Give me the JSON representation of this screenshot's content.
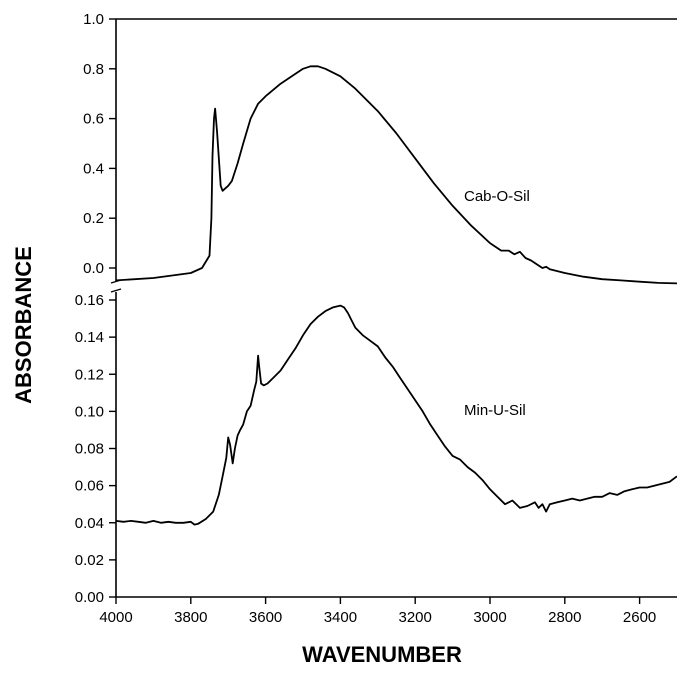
{
  "chart_data": [
    {
      "type": "line",
      "panel": "upper",
      "xlabel": "WAVENUMBER",
      "ylabel": "ABSORBANCE",
      "xlim": [
        4000,
        2500
      ],
      "x_reversed": true,
      "ylim": [
        -0.05,
        1.0
      ],
      "y_ticks": [
        "0.0",
        "0.2",
        "0.4",
        "0.6",
        "0.8",
        "1.0"
      ],
      "y_tick_values": [
        0.0,
        0.2,
        0.4,
        0.6,
        0.8,
        1.0
      ],
      "series": [
        {
          "name": "Cab-O-Sil",
          "x": [
            4000,
            3900,
            3800,
            3770,
            3750,
            3745,
            3742,
            3738,
            3735,
            3730,
            3720,
            3715,
            3700,
            3690,
            3675,
            3660,
            3640,
            3620,
            3600,
            3560,
            3520,
            3500,
            3480,
            3460,
            3440,
            3400,
            3360,
            3300,
            3250,
            3200,
            3150,
            3100,
            3050,
            3000,
            2970,
            2950,
            2935,
            2920,
            2905,
            2890,
            2870,
            2860,
            2850,
            2840,
            2800,
            2750,
            2700,
            2650,
            2600,
            2550,
            2500
          ],
          "y": [
            -0.05,
            -0.04,
            -0.02,
            0.0,
            0.05,
            0.2,
            0.45,
            0.6,
            0.64,
            0.55,
            0.33,
            0.31,
            0.33,
            0.35,
            0.42,
            0.5,
            0.6,
            0.66,
            0.69,
            0.74,
            0.78,
            0.8,
            0.81,
            0.81,
            0.8,
            0.77,
            0.72,
            0.63,
            0.54,
            0.44,
            0.34,
            0.25,
            0.17,
            0.1,
            0.07,
            0.07,
            0.055,
            0.065,
            0.04,
            0.03,
            0.01,
            0.0,
            0.005,
            -0.005,
            -0.02,
            -0.035,
            -0.045,
            -0.05,
            -0.055,
            -0.06,
            -0.062
          ]
        }
      ]
    },
    {
      "type": "line",
      "panel": "lower",
      "xlabel": "WAVENUMBER",
      "ylabel": "ABSORBANCE",
      "xlim": [
        4000,
        2500
      ],
      "x_reversed": true,
      "ylim": [
        0.0,
        0.16
      ],
      "y_ticks": [
        "0.00",
        "0.02",
        "0.04",
        "0.06",
        "0.08",
        "0.10",
        "0.12",
        "0.14",
        "0.16"
      ],
      "y_tick_values": [
        0.0,
        0.02,
        0.04,
        0.06,
        0.08,
        0.1,
        0.12,
        0.14,
        0.16
      ],
      "x_ticks": [
        "4000",
        "3800",
        "3600",
        "3400",
        "3200",
        "3000",
        "2800",
        "2600"
      ],
      "x_tick_values": [
        4000,
        3800,
        3600,
        3400,
        3200,
        3000,
        2800,
        2600
      ],
      "series": [
        {
          "name": "Min-U-Sil",
          "x": [
            4000,
            3980,
            3960,
            3940,
            3920,
            3900,
            3880,
            3860,
            3840,
            3820,
            3800,
            3790,
            3780,
            3760,
            3740,
            3725,
            3715,
            3705,
            3700,
            3695,
            3688,
            3682,
            3675,
            3668,
            3660,
            3650,
            3640,
            3630,
            3625,
            3620,
            3617,
            3612,
            3605,
            3595,
            3580,
            3560,
            3540,
            3520,
            3500,
            3480,
            3460,
            3440,
            3420,
            3400,
            3390,
            3380,
            3370,
            3360,
            3340,
            3320,
            3300,
            3280,
            3260,
            3240,
            3220,
            3200,
            3180,
            3160,
            3140,
            3120,
            3100,
            3080,
            3060,
            3040,
            3020,
            3000,
            2980,
            2960,
            2940,
            2920,
            2900,
            2880,
            2870,
            2860,
            2850,
            2840,
            2820,
            2800,
            2780,
            2760,
            2740,
            2720,
            2700,
            2680,
            2660,
            2640,
            2620,
            2600,
            2580,
            2560,
            2540,
            2520,
            2500
          ],
          "y": [
            0.041,
            0.0405,
            0.041,
            0.0405,
            0.04,
            0.041,
            0.04,
            0.0405,
            0.04,
            0.04,
            0.0405,
            0.039,
            0.0395,
            0.042,
            0.046,
            0.055,
            0.065,
            0.075,
            0.086,
            0.082,
            0.072,
            0.08,
            0.087,
            0.09,
            0.093,
            0.1,
            0.103,
            0.112,
            0.116,
            0.13,
            0.124,
            0.115,
            0.114,
            0.115,
            0.118,
            0.122,
            0.128,
            0.134,
            0.141,
            0.147,
            0.151,
            0.154,
            0.156,
            0.157,
            0.156,
            0.153,
            0.149,
            0.145,
            0.141,
            0.138,
            0.135,
            0.129,
            0.124,
            0.118,
            0.112,
            0.106,
            0.1,
            0.093,
            0.087,
            0.081,
            0.076,
            0.074,
            0.07,
            0.067,
            0.063,
            0.058,
            0.054,
            0.05,
            0.052,
            0.048,
            0.049,
            0.051,
            0.048,
            0.05,
            0.046,
            0.05,
            0.051,
            0.052,
            0.053,
            0.052,
            0.053,
            0.054,
            0.054,
            0.056,
            0.055,
            0.057,
            0.058,
            0.059,
            0.059,
            0.06,
            0.061,
            0.062,
            0.065
          ]
        }
      ]
    }
  ]
}
